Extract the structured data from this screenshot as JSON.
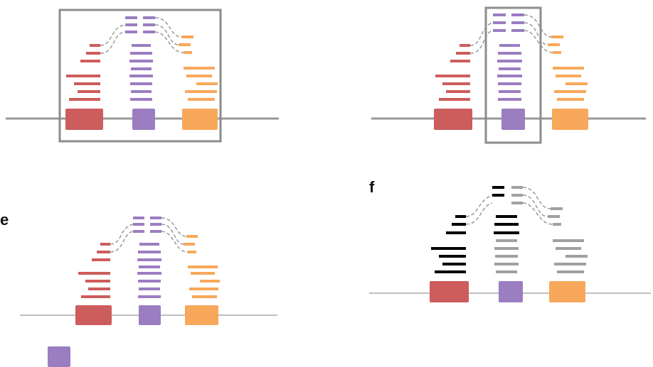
{
  "panel_labels": {
    "e": "e",
    "f": "f"
  },
  "colors": {
    "exon_left": "#cd5c5c",
    "exon_middle": "#9b7dc1",
    "exon_right": "#f7a85a",
    "genome_line": "#999999",
    "junction_dash": "#999999",
    "box_outline": "#8c8c8c",
    "read_black": "#000000",
    "read_gray": "#a0a0a0"
  }
}
